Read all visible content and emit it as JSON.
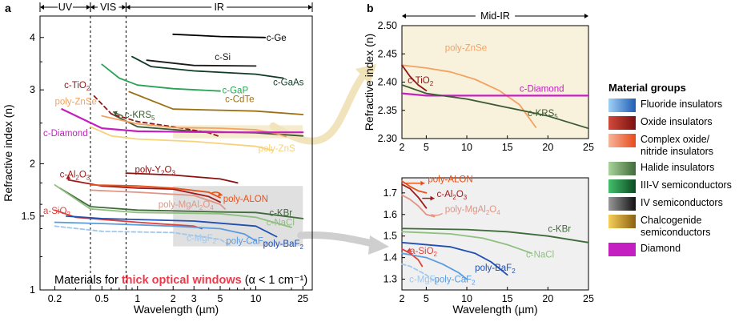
{
  "panels": {
    "a": "a",
    "b": "b"
  },
  "regions": {
    "uv": "UV",
    "vis": "VIS",
    "ir": "IR",
    "midir": "Mid-IR"
  },
  "caption": {
    "pre": "Materials for ",
    "highlight": "thick optical windows",
    "post": " (α < 1 cm⁻¹)"
  },
  "legend": {
    "title": "Material groups",
    "items": [
      {
        "label": "Fluoride insulators",
        "colors": [
          "#9fd0f5",
          "#1f5db5"
        ]
      },
      {
        "label": "Oxide insulators",
        "colors": [
          "#d24a3a",
          "#7a1010"
        ]
      },
      {
        "label": "Complex oxide/\nnitride insulators",
        "colors": [
          "#f6b59a",
          "#e84a1a"
        ]
      },
      {
        "label": "Halide insulators",
        "colors": [
          "#a9d39a",
          "#3f6a3a"
        ]
      },
      {
        "label": "III-V semiconductors",
        "colors": [
          "#43c06b",
          "#0c4a23"
        ]
      },
      {
        "label": "IV semiconductors",
        "colors": [
          "#999999",
          "#111111"
        ]
      },
      {
        "label": "Chalcogenide\nsemiconductors",
        "colors": [
          "#f7cf5a",
          "#8a6110"
        ]
      },
      {
        "label": "Diamond",
        "colors": [
          "#c41fc0",
          "#c41fc0"
        ]
      }
    ]
  },
  "colors": {
    "c-Ge": "#000000",
    "c-Si": "#1a1a1a",
    "c-GaAs": "#0f3b25",
    "c-GaP": "#2aa256",
    "c-CdTe": "#9c7014",
    "c-KRS5": "#3b5a32",
    "c-TiO2": "#8b1a1a",
    "poly-ZnSe": "#f4a261",
    "c-Diamond": "#c41fc0",
    "poly-ZnS": "#f7d27a",
    "c-Al2O3": "#a01a1a",
    "poly-Y2O3": "#8b1010",
    "poly-ALON": "#e8521a",
    "poly-MgAl2O4": "#e09585",
    "c-KBr": "#3f6a3a",
    "c-NaCl": "#8fc080",
    "a-SiO2": "#e0403a",
    "c-MgF2": "#9fc8ee",
    "poly-CaF2": "#5a9be0",
    "poly-BaF2": "#1f4fb0",
    "highlight": "#f03a4a",
    "box-yellow": "#f3e8c4",
    "box-gray": "#d5d5d5"
  },
  "chart_data": [
    {
      "panel": "a",
      "type": "line",
      "xlabel": "Wavelength (µm)",
      "ylabel": "Refractive index (n)",
      "xscale": "log",
      "yscale": "log",
      "xlim": [
        0.15,
        30
      ],
      "ylim": [
        1,
        4.5
      ],
      "xticks": [
        "0.2",
        "0.5",
        "1",
        "2",
        "3",
        "5",
        "10",
        "25"
      ],
      "yticks": [
        "1",
        "1.5",
        "2",
        "3",
        "4"
      ],
      "boundaries_um": [
        0.4,
        0.8
      ],
      "series": [
        {
          "name": "c-Ge",
          "points": [
            [
              2,
              4.07
            ],
            [
              5,
              4.02
            ],
            [
              12,
              4.0
            ]
          ]
        },
        {
          "name": "c-Si",
          "points": [
            [
              1.2,
              3.53
            ],
            [
              3,
              3.43
            ],
            [
              10,
              3.42
            ]
          ]
        },
        {
          "name": "c-GaAs",
          "points": [
            [
              0.9,
              3.6
            ],
            [
              1.3,
              3.41
            ],
            [
              3,
              3.33
            ],
            [
              10,
              3.27
            ],
            [
              17,
              3.2
            ]
          ]
        },
        {
          "name": "c-GaP",
          "points": [
            [
              0.5,
              3.45
            ],
            [
              0.7,
              3.2
            ],
            [
              1,
              3.08
            ],
            [
              2,
              3.02
            ],
            [
              5,
              2.98
            ]
          ]
        },
        {
          "name": "c-CdTe",
          "points": [
            [
              0.85,
              2.97
            ],
            [
              2,
              2.7
            ],
            [
              10,
              2.67
            ],
            [
              25,
              2.62
            ]
          ]
        },
        {
          "name": "c-KRS5",
          "points": [
            [
              0.6,
              2.63
            ],
            [
              1,
              2.45
            ],
            [
              3,
              2.39
            ],
            [
              10,
              2.37
            ],
            [
              25,
              2.33
            ]
          ]
        },
        {
          "name": "c-TiO2",
          "points": [
            [
              0.43,
              2.9
            ],
            [
              0.6,
              2.63
            ],
            [
              1,
              2.52
            ],
            [
              2,
              2.45
            ],
            [
              4,
              2.37
            ],
            [
              5,
              2.32
            ]
          ]
        },
        {
          "name": "poly-ZnSe",
          "points": [
            [
              0.5,
              2.6
            ],
            [
              1,
              2.49
            ],
            [
              2,
              2.44
            ],
            [
              5,
              2.43
            ],
            [
              10,
              2.41
            ],
            [
              15,
              2.36
            ],
            [
              18,
              2.32
            ]
          ]
        },
        {
          "name": "c-Diamond",
          "points": [
            [
              0.23,
              2.7
            ],
            [
              0.5,
              2.43
            ],
            [
              1,
              2.39
            ],
            [
              5,
              2.376
            ],
            [
              25,
              2.376
            ]
          ]
        },
        {
          "name": "poly-ZnS",
          "points": [
            [
              0.4,
              2.45
            ],
            [
              0.6,
              2.33
            ],
            [
              1,
              2.29
            ],
            [
              3,
              2.26
            ],
            [
              10,
              2.2
            ],
            [
              14,
              2.15
            ]
          ]
        },
        {
          "name": "c-Al2O3",
          "points": [
            [
              0.26,
              1.83
            ],
            [
              0.5,
              1.77
            ],
            [
              1,
              1.75
            ],
            [
              2,
              1.74
            ],
            [
              4,
              1.67
            ],
            [
              5,
              1.62
            ]
          ]
        },
        {
          "name": "poly-Y2O3",
          "points": [
            [
              0.8,
              1.9
            ],
            [
              2,
              1.88
            ],
            [
              5,
              1.84
            ],
            [
              7,
              1.8
            ]
          ]
        },
        {
          "name": "poly-ALON",
          "points": [
            [
              0.4,
              1.78
            ],
            [
              1,
              1.77
            ],
            [
              2,
              1.75
            ],
            [
              4,
              1.71
            ],
            [
              5,
              1.66
            ]
          ]
        },
        {
          "name": "poly-MgAl2O4",
          "points": [
            [
              0.4,
              1.73
            ],
            [
              1,
              1.71
            ],
            [
              3,
              1.68
            ],
            [
              5,
              1.6
            ],
            [
              5.5,
              1.56
            ]
          ]
        },
        {
          "name": "c-KBr",
          "points": [
            [
              0.22,
              1.75
            ],
            [
              0.4,
              1.58
            ],
            [
              1,
              1.55
            ],
            [
              5,
              1.535
            ],
            [
              10,
              1.53
            ],
            [
              25,
              1.48
            ]
          ]
        },
        {
          "name": "c-NaCl",
          "points": [
            [
              0.2,
              1.78
            ],
            [
              0.4,
              1.56
            ],
            [
              1,
              1.53
            ],
            [
              5,
              1.52
            ],
            [
              10,
              1.49
            ],
            [
              20,
              1.41
            ]
          ]
        },
        {
          "name": "a-SiO2",
          "points": [
            [
              0.2,
              1.55
            ],
            [
              0.3,
              1.49
            ],
            [
              1,
              1.45
            ],
            [
              3,
              1.42
            ],
            [
              3.5,
              1.4
            ]
          ]
        },
        {
          "name": "c-MgF2",
          "points": [
            [
              0.2,
              1.42
            ],
            [
              0.5,
              1.38
            ],
            [
              2,
              1.37
            ],
            [
              5,
              1.32
            ],
            [
              6,
              1.28
            ]
          ]
        },
        {
          "name": "poly-CaF2",
          "points": [
            [
              0.2,
              1.45
            ],
            [
              0.5,
              1.44
            ],
            [
              2,
              1.42
            ],
            [
              5,
              1.4
            ],
            [
              8,
              1.36
            ],
            [
              10,
              1.31
            ]
          ]
        },
        {
          "name": "poly-BaF2",
          "points": [
            [
              0.25,
              1.5
            ],
            [
              0.5,
              1.48
            ],
            [
              3,
              1.46
            ],
            [
              10,
              1.42
            ],
            [
              15,
              1.34
            ]
          ]
        }
      ]
    },
    {
      "panel": "b-top",
      "type": "line",
      "ylabel": "Refractive index (n)",
      "xlim": [
        2,
        25
      ],
      "ylim": [
        2.3,
        2.5
      ],
      "xticks": [
        "2",
        "5",
        "10",
        "15",
        "20",
        "25"
      ],
      "yticks": [
        "2.30",
        "2.35",
        "2.40",
        "2.45",
        "2.50"
      ],
      "series": [
        {
          "name": "poly-ZnSe",
          "points": [
            [
              2,
              2.43
            ],
            [
              5,
              2.425
            ],
            [
              8,
              2.418
            ],
            [
              11,
              2.405
            ],
            [
              14,
              2.385
            ],
            [
              16.5,
              2.36
            ],
            [
              18.5,
              2.32
            ]
          ]
        },
        {
          "name": "c-TiO2",
          "points": [
            [
              2,
              2.43
            ],
            [
              3,
              2.41
            ],
            [
              4,
              2.395
            ],
            [
              5,
              2.385
            ]
          ]
        },
        {
          "name": "c-Diamond",
          "points": [
            [
              2,
              2.38
            ],
            [
              5,
              2.376
            ],
            [
              25,
              2.376
            ]
          ]
        },
        {
          "name": "c-KRS5",
          "points": [
            [
              2,
              2.395
            ],
            [
              5,
              2.38
            ],
            [
              10,
              2.37
            ],
            [
              15,
              2.355
            ],
            [
              20,
              2.34
            ],
            [
              25,
              2.318
            ]
          ]
        }
      ]
    },
    {
      "panel": "b-bottom",
      "type": "line",
      "xlabel": "Wavelength (µm)",
      "xlim": [
        2,
        25
      ],
      "ylim": [
        1.25,
        1.77
      ],
      "xticks": [
        "2",
        "5",
        "10",
        "15",
        "20",
        "25"
      ],
      "yticks": [
        "1.3",
        "1.4",
        "1.5",
        "1.6",
        "1.7"
      ],
      "series": [
        {
          "name": "poly-ALON",
          "points": [
            [
              2,
              1.755
            ],
            [
              3,
              1.73
            ],
            [
              4,
              1.71
            ],
            [
              5,
              1.7
            ]
          ]
        },
        {
          "name": "c-Al2O3",
          "points": [
            [
              2,
              1.74
            ],
            [
              3,
              1.72
            ],
            [
              4,
              1.68
            ],
            [
              5,
              1.63
            ]
          ]
        },
        {
          "name": "poly-MgAl2O4",
          "points": [
            [
              2,
              1.69
            ],
            [
              3,
              1.67
            ],
            [
              4,
              1.64
            ],
            [
              5,
              1.6
            ],
            [
              6,
              1.59
            ]
          ]
        },
        {
          "name": "c-KBr",
          "points": [
            [
              2,
              1.535
            ],
            [
              10,
              1.53
            ],
            [
              15,
              1.52
            ],
            [
              20,
              1.5
            ],
            [
              25,
              1.47
            ]
          ]
        },
        {
          "name": "c-NaCl",
          "points": [
            [
              2,
              1.52
            ],
            [
              8,
              1.51
            ],
            [
              12,
              1.49
            ],
            [
              15,
              1.46
            ],
            [
              18,
              1.42
            ]
          ]
        },
        {
          "name": "a-SiO2",
          "points": [
            [
              2,
              1.44
            ],
            [
              3,
              1.42
            ],
            [
              4,
              1.39
            ],
            [
              4.5,
              1.36
            ]
          ]
        },
        {
          "name": "c-MgF2",
          "points": [
            [
              2,
              1.37
            ],
            [
              3,
              1.36
            ],
            [
              4,
              1.34
            ],
            [
              5,
              1.32
            ],
            [
              6,
              1.29
            ]
          ]
        },
        {
          "name": "poly-CaF2",
          "points": [
            [
              2,
              1.42
            ],
            [
              5,
              1.4
            ],
            [
              7,
              1.37
            ],
            [
              9,
              1.33
            ],
            [
              10,
              1.3
            ]
          ]
        },
        {
          "name": "poly-BaF2",
          "points": [
            [
              2,
              1.47
            ],
            [
              8,
              1.45
            ],
            [
              11,
              1.42
            ],
            [
              13,
              1.38
            ],
            [
              15,
              1.32
            ]
          ]
        }
      ]
    }
  ]
}
